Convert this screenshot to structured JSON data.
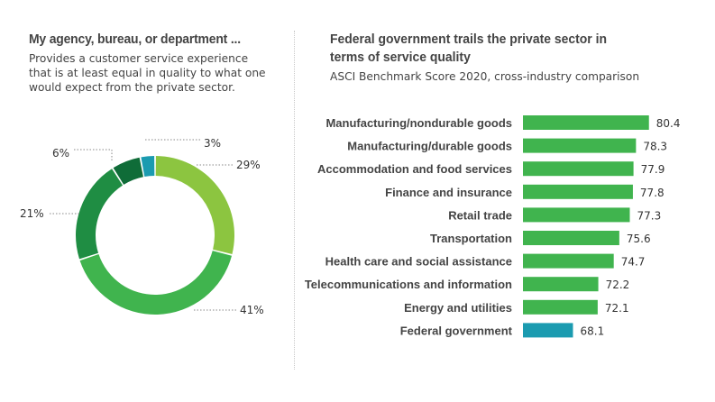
{
  "left_panel": {
    "title": "My agency, bureau, or department ...",
    "subtitle": "Provides a customer service experience that is at least equal in quality to what one would expect from the private sector."
  },
  "right_panel": {
    "title": "Federal government trails the private sector in terms of service quality",
    "subtitle": "ASCI Benchmark Score 2020, cross-industry comparison"
  },
  "colors": {
    "slice_1": "#8cc540",
    "slice_2": "#40b44e",
    "slice_3": "#1f8d43",
    "slice_4": "#0f6c38",
    "slice_5": "#1b9bb0",
    "bar_private": "#40b44e",
    "bar_federal": "#1b9bb0"
  },
  "chart_data": [
    {
      "type": "pie",
      "variant": "donut",
      "title": "My agency, bureau, or department ...",
      "slices": [
        {
          "label": "29%",
          "value": 29,
          "color": "#8cc540"
        },
        {
          "label": "41%",
          "value": 41,
          "color": "#40b44e"
        },
        {
          "label": "21%",
          "value": 21,
          "color": "#1f8d43"
        },
        {
          "label": "6%",
          "value": 6,
          "color": "#0f6c38"
        },
        {
          "label": "3%",
          "value": 3,
          "color": "#1b9bb0"
        }
      ],
      "legend": "none"
    },
    {
      "type": "bar",
      "orientation": "horizontal",
      "title": "Federal government trails the private sector in terms of service quality",
      "subtitle": "ASCI Benchmark Score 2020, cross-industry comparison",
      "categories": [
        "Manufacturing/nondurable goods",
        "Manufacturing/durable goods",
        "Accommodation and food services",
        "Finance and insurance",
        "Retail trade",
        "Transportation",
        "Health care and social assistance",
        "Telecommunications and information",
        "Energy and utilities",
        "Federal government"
      ],
      "values": [
        80.4,
        78.3,
        77.9,
        77.8,
        77.3,
        75.6,
        74.7,
        72.2,
        72.1,
        68.1
      ],
      "value_labels": [
        "80.4",
        "78.3",
        "77.9",
        "77.8",
        "77.3",
        "75.6",
        "74.7",
        "72.2",
        "72.1",
        "68.1"
      ],
      "highlight": "Federal government",
      "xlim": [
        60,
        81
      ],
      "xlabel": "",
      "ylabel": "",
      "grid": false
    }
  ]
}
